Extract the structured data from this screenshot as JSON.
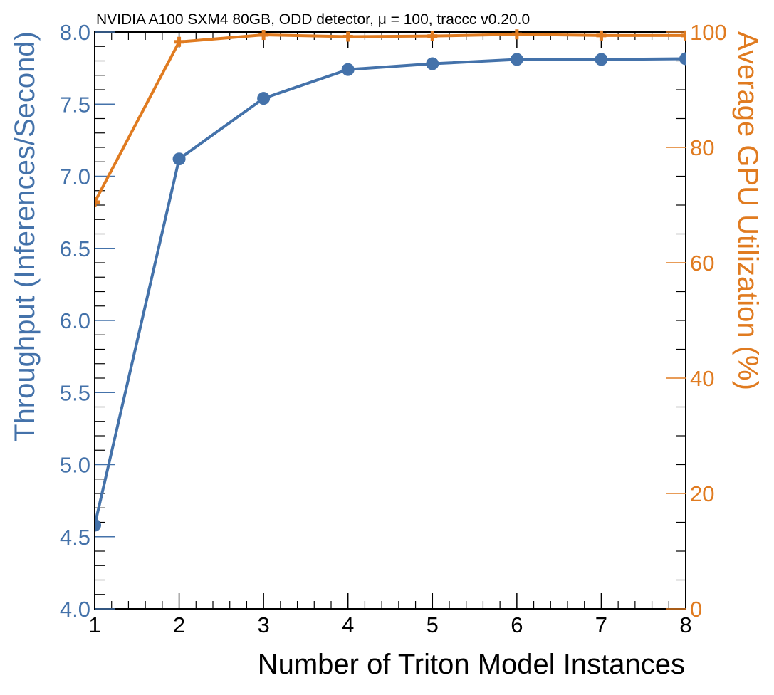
{
  "colors": {
    "left_series": "#4472aa",
    "right_series": "#e07b20",
    "axis": "#000000",
    "background": "#ffffff"
  },
  "chart_data": {
    "type": "line",
    "title": "NVIDIA A100 SXM4 80GB, ODD detector, μ = 100, traccc v0.20.0",
    "xlabel": "Number of Triton Model Instances",
    "ylabel_left": "Throughput (Inferences/Second)",
    "ylabel_right": "Average GPU Utilization (%)",
    "x": [
      1,
      2,
      3,
      4,
      5,
      6,
      7,
      8
    ],
    "xlim": [
      1,
      8
    ],
    "x_ticks": [
      "1",
      "2",
      "3",
      "4",
      "5",
      "6",
      "7",
      "8"
    ],
    "ylim_left": [
      4.0,
      8.0
    ],
    "y_ticks_left": [
      "4.0",
      "4.5",
      "5.0",
      "5.5",
      "6.0",
      "6.5",
      "7.0",
      "7.5",
      "8.0"
    ],
    "ylim_right": [
      0,
      100
    ],
    "y_ticks_right": [
      "0",
      "20",
      "40",
      "60",
      "80",
      "100"
    ],
    "grid": false,
    "legend": "none",
    "series": [
      {
        "axis": "left",
        "marker": "circle",
        "color": "#4472aa",
        "values": [
          4.58,
          7.12,
          7.54,
          7.74,
          7.78,
          7.81,
          7.81,
          7.815
        ]
      },
      {
        "axis": "right",
        "marker": "plus",
        "color": "#e07b20",
        "values": [
          70.5,
          98.3,
          99.5,
          99.2,
          99.3,
          99.6,
          99.4,
          99.4
        ]
      }
    ]
  }
}
